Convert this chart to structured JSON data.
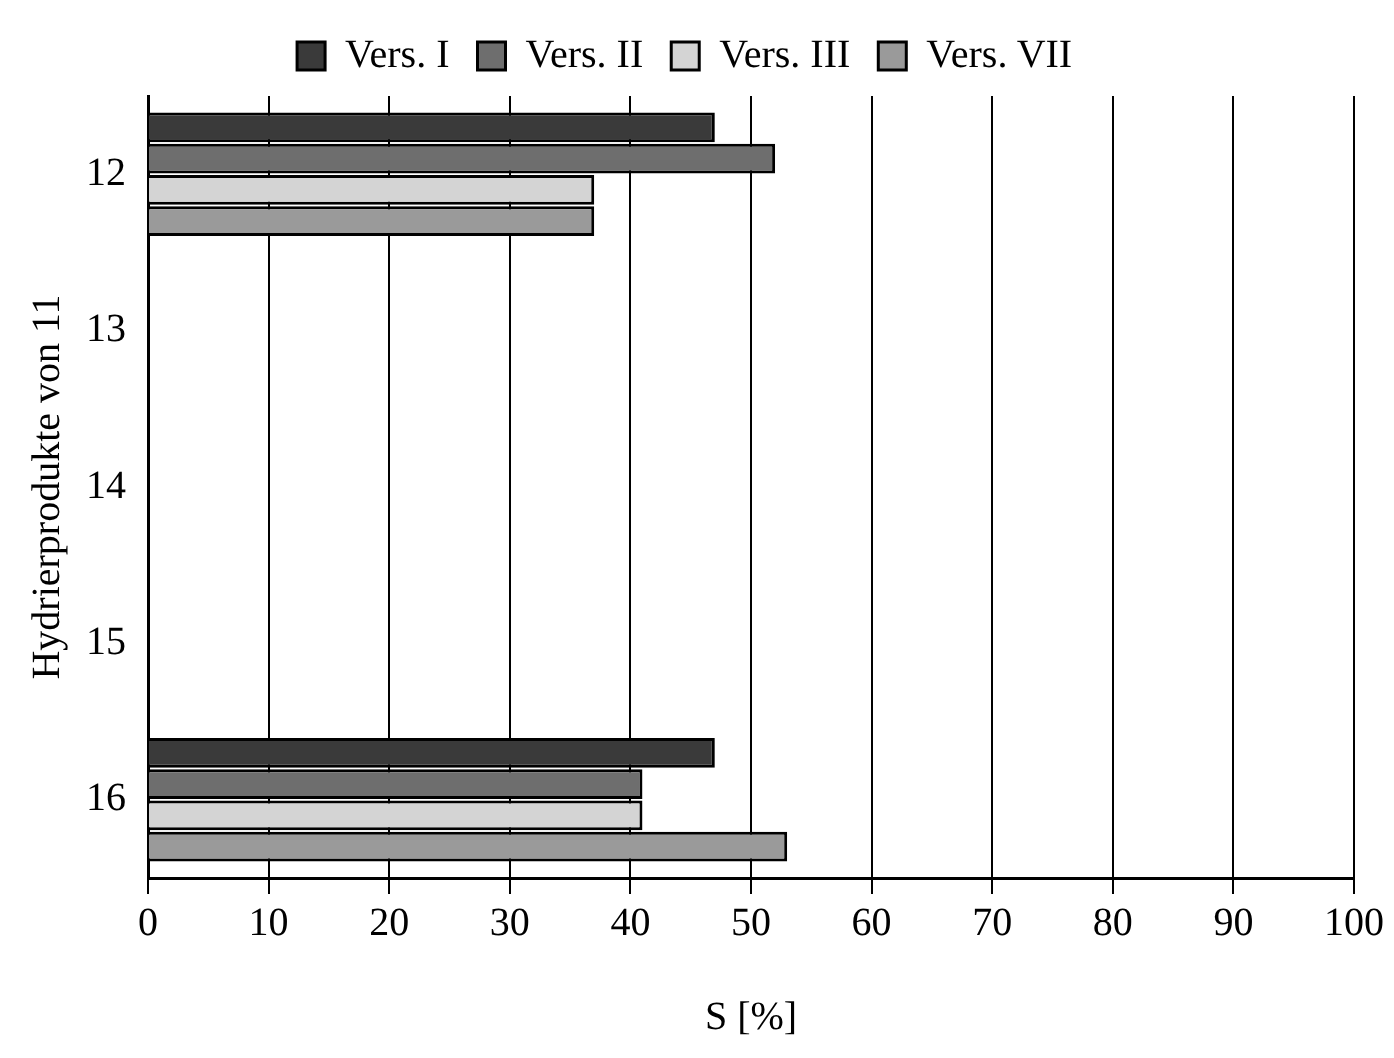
{
  "chart_data": {
    "type": "bar",
    "orientation": "horizontal",
    "xlabel": "S [%]",
    "ylabel": "Hydrierprodukte von 11",
    "categories": [
      "12",
      "13",
      "14",
      "15",
      "16"
    ],
    "series": [
      {
        "name": "Vers. I",
        "color": "#3a3a3a",
        "values": [
          47,
          0,
          0,
          0,
          47
        ]
      },
      {
        "name": "Vers. II",
        "color": "#6e6e6e",
        "values": [
          52,
          0,
          0,
          0,
          41
        ]
      },
      {
        "name": "Vers. III",
        "color": "#d4d4d4",
        "values": [
          37,
          0,
          0,
          0,
          41
        ]
      },
      {
        "name": "Vers. VII",
        "color": "#9a9a9a",
        "values": [
          37,
          0,
          0,
          0,
          53
        ]
      }
    ],
    "xlim": [
      0,
      100
    ],
    "xticks": [
      0,
      10,
      20,
      30,
      40,
      50,
      60,
      70,
      80,
      90,
      100
    ],
    "grid": "x",
    "legend": "top"
  }
}
